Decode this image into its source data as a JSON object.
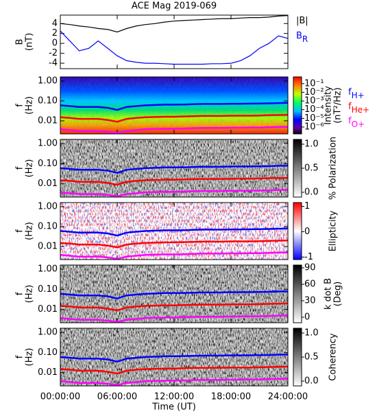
{
  "chart_data": [
    {
      "type": "line",
      "title": "ACE Mag 2019-069",
      "ylabel": [
        "B",
        "(nT)"
      ],
      "x": [
        0,
        1,
        2,
        3,
        4,
        5,
        6,
        7,
        8,
        9,
        10,
        11,
        12,
        13,
        14,
        15,
        16,
        17,
        18,
        19,
        20,
        21,
        22,
        23,
        24
      ],
      "xlim": [
        0,
        24
      ],
      "ylim": [
        -5.1,
        5.7
      ],
      "yticks": [
        -4,
        -2,
        0,
        2,
        4
      ],
      "series": [
        {
          "name": "|B|",
          "color": "#000000",
          "values": [
            4.0,
            3.8,
            3.5,
            3.3,
            3.0,
            2.8,
            2.3,
            3.0,
            3.5,
            3.8,
            4.0,
            4.3,
            4.5,
            4.6,
            4.7,
            4.8,
            4.9,
            5.0,
            5.0,
            5.1,
            5.2,
            5.2,
            5.3,
            5.5,
            5.6
          ]
        },
        {
          "name": "B",
          "sub": "R",
          "color": "#0000ff",
          "values": [
            2.5,
            0.5,
            -1.5,
            -1.0,
            0.5,
            -1.0,
            -2.5,
            -3.5,
            -3.8,
            -4.0,
            -4.0,
            -4.1,
            -4.2,
            -4.2,
            -4.2,
            -4.2,
            -4.1,
            -4.1,
            -4.0,
            -3.5,
            -2.5,
            -1.0,
            0.0,
            1.5,
            1.0
          ]
        }
      ]
    },
    {
      "type": "spectrogram",
      "ylabel": [
        "f",
        "(Hz)"
      ],
      "log": true,
      "colormap": "rainbow",
      "clabel": [
        "Intensity",
        "(nT²/Hz)"
      ],
      "clog": true,
      "clim": [
        1.6e-07,
        0.6
      ],
      "cticks": [
        {
          "value": 0.1,
          "label": "10⁻¹"
        },
        {
          "value": 0.01,
          "label": "10⁻²"
        },
        {
          "value": 0.001,
          "label": "10⁻³"
        },
        {
          "value": 0.0001,
          "label": "10⁻⁴"
        },
        {
          "value": 1e-05,
          "label": "10⁻⁵"
        },
        {
          "value": 1e-06,
          "label": "10⁻⁶"
        }
      ],
      "x": [
        0,
        1,
        2,
        3,
        4,
        5,
        6,
        7,
        8,
        9,
        10,
        11,
        12,
        13,
        14,
        15,
        16,
        17,
        18,
        19,
        20,
        21,
        22,
        23,
        24
      ],
      "xlim": [
        0,
        24
      ],
      "ylim": [
        0.0022,
        1.6
      ],
      "yticks": [
        {
          "value": 1,
          "label": "1.00"
        },
        {
          "value": 0.1,
          "label": "0.10"
        },
        {
          "value": 0.01,
          "label": "0.01"
        }
      ],
      "series": [
        {
          "name": "f",
          "sub": "H+",
          "color": "#0000ff",
          "values": [
            0.06,
            0.055,
            0.05,
            0.05,
            0.05,
            0.045,
            0.035,
            0.05,
            0.055,
            0.06,
            0.062,
            0.065,
            0.065,
            0.066,
            0.068,
            0.07,
            0.07,
            0.07,
            0.072,
            0.072,
            0.073,
            0.074,
            0.075,
            0.078,
            0.08
          ]
        },
        {
          "name": "f",
          "sub": "He+",
          "color": "#ff0000",
          "values": [
            0.015,
            0.014,
            0.0125,
            0.0125,
            0.0125,
            0.011,
            0.009,
            0.0125,
            0.014,
            0.015,
            0.0155,
            0.016,
            0.016,
            0.0165,
            0.017,
            0.0175,
            0.0175,
            0.0175,
            0.018,
            0.018,
            0.018,
            0.0185,
            0.019,
            0.0195,
            0.02
          ]
        },
        {
          "name": "f",
          "sub": "O+",
          "color": "#ff00ff",
          "values": [
            0.0038,
            0.0034,
            0.0031,
            0.0031,
            0.0031,
            0.0028,
            0.0024,
            0.0031,
            0.0034,
            0.0038,
            0.0039,
            0.004,
            0.004,
            0.0041,
            0.0043,
            0.0044,
            0.0044,
            0.0044,
            0.0045,
            0.0045,
            0.0046,
            0.0046,
            0.0048,
            0.0049,
            0.005
          ]
        }
      ]
    },
    {
      "type": "spectrogram",
      "ylabel": [
        "f",
        "(Hz)"
      ],
      "log": true,
      "colormap": "gray",
      "clabel": [
        "% Polarization"
      ],
      "clim": [
        -0.1,
        1.1
      ],
      "cticks": [
        {
          "value": 1,
          "label": "1.0"
        },
        {
          "value": 0.5,
          "label": "0.5"
        },
        {
          "value": 0,
          "label": "0.0"
        }
      ],
      "ylim": [
        0.0022,
        1.6
      ],
      "yticks": [
        {
          "value": 1,
          "label": "1.00"
        },
        {
          "value": 0.1,
          "label": "0.10"
        },
        {
          "value": 0.01,
          "label": "0.01"
        }
      ]
    },
    {
      "type": "spectrogram",
      "ylabel": [
        "f",
        "(Hz)"
      ],
      "log": true,
      "colormap": "bwr",
      "clabel": [
        "Ellipticity"
      ],
      "clim": [
        -1.1,
        1.15
      ],
      "cticks": [
        1,
        0,
        -1
      ],
      "ylim": [
        0.0022,
        1.6
      ],
      "yticks": [
        {
          "value": 1,
          "label": "1.00"
        },
        {
          "value": 0.1,
          "label": "0.10"
        },
        {
          "value": 0.01,
          "label": "0.01"
        }
      ]
    },
    {
      "type": "spectrogram",
      "ylabel": [
        "f",
        "(Hz)"
      ],
      "log": true,
      "colormap": "gray",
      "clabel": [
        "k dot B",
        "(Deg)"
      ],
      "clim": [
        -10,
        95
      ],
      "cticks": [
        90,
        60,
        30,
        0
      ],
      "ylim": [
        0.0022,
        1.6
      ],
      "yticks": [
        {
          "value": 1,
          "label": "1.00"
        },
        {
          "value": 0.1,
          "label": "0.10"
        },
        {
          "value": 0.01,
          "label": "0.01"
        }
      ]
    },
    {
      "type": "spectrogram",
      "ylabel": [
        "f",
        "(Hz)"
      ],
      "log": true,
      "colormap": "gray",
      "clabel": [
        "Coherency"
      ],
      "clim": [
        -0.1,
        1.1
      ],
      "cticks": [
        {
          "value": 1,
          "label": "1.0"
        },
        {
          "value": 0.5,
          "label": "0.5"
        },
        {
          "value": 0,
          "label": "0.0"
        }
      ],
      "xlim": [
        0,
        24
      ],
      "xlabel": "Time (UT)",
      "xticks": [
        {
          "value": 0,
          "label": "00:00:00"
        },
        {
          "value": 6,
          "label": "06:00:00"
        },
        {
          "value": 12,
          "label": "12:00:00"
        },
        {
          "value": 18,
          "label": "18:00:00"
        },
        {
          "value": 24,
          "label": "24:00:00"
        }
      ],
      "ylim": [
        0.0022,
        1.6
      ],
      "yticks": [
        {
          "value": 1,
          "label": "1.00"
        },
        {
          "value": 0.1,
          "label": "0.10"
        },
        {
          "value": 0.01,
          "label": "0.01"
        }
      ]
    }
  ]
}
